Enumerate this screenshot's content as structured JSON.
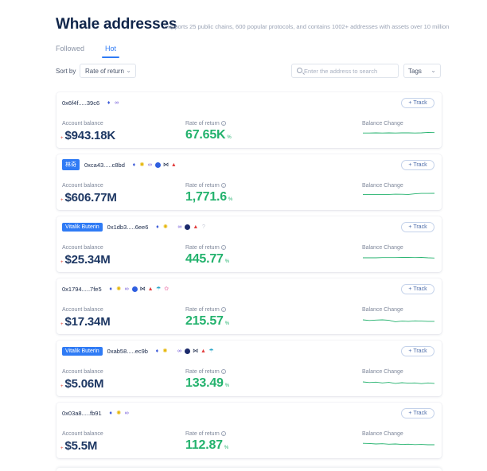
{
  "header": {
    "title": "Whale addresses",
    "subtitle": "Supports 25 public chains, 600 popular protocols, and contains 1002+ addresses with assets over 10 million"
  },
  "tabs": [
    {
      "label": "Followed",
      "active": false
    },
    {
      "label": "Hot",
      "active": true
    }
  ],
  "toolbar": {
    "sort_label": "Sort by",
    "sort_value": "Rate of return",
    "search_placeholder": "Enter the address to search",
    "tags_value": "Tags"
  },
  "labels": {
    "account_balance": "Account balance",
    "rate_of_return": "Rate of return",
    "balance_change": "Balance Change",
    "track": "+ Track",
    "percent": "%"
  },
  "colors": {
    "accent": "#2f7bf5",
    "positive": "#23b26d",
    "balance_text": "#1d3763"
  },
  "whales": [
    {
      "tag": "",
      "address": "0x6f4f.....39c6",
      "icons": [
        "eth-icon",
        "link-icon"
      ],
      "protocol_icons": [],
      "balance_prefix": "+",
      "balance": "$943.18K",
      "rate": "67.65K",
      "spark": [
        0.55,
        0.55,
        0.56,
        0.55,
        0.56,
        0.55,
        0.56,
        0.56,
        0.55,
        0.56,
        0.6,
        0.58
      ]
    },
    {
      "tag": "林奇",
      "address": "0xca43.....c8bd",
      "icons": [
        "eth-icon",
        "sun-icon",
        "link-icon",
        "blue-coin-icon",
        "bowtie-icon",
        "red-triangle-icon"
      ],
      "protocol_icons": [],
      "balance_prefix": "+",
      "balance": "$606.77M",
      "rate": "1,771.6",
      "spark": [
        0.6,
        0.6,
        0.6,
        0.6,
        0.6,
        0.62,
        0.61,
        0.6,
        0.65,
        0.68,
        0.68,
        0.69
      ]
    },
    {
      "tag": "Vitalik Buterin",
      "address": "0x1db3.....6ee6",
      "icons": [
        "eth-icon",
        "sun-icon"
      ],
      "protocol_icons": [
        "link-icon",
        "navy-coin-icon",
        "red-triangle-icon",
        "grey-question-icon"
      ],
      "balance_prefix": "+",
      "balance": "$25.34M",
      "rate": "445.77",
      "spark": [
        0.5,
        0.5,
        0.5,
        0.52,
        0.52,
        0.52,
        0.53,
        0.53,
        0.52,
        0.53,
        0.5,
        0.48
      ]
    },
    {
      "tag": "",
      "address": "0x1794.....7fe5",
      "icons": [
        "eth-icon",
        "sun-icon",
        "link-icon",
        "blue-coin-icon",
        "bowtie-icon",
        "red-triangle-icon",
        "umbrella-icon",
        "flower-icon"
      ],
      "protocol_icons": [],
      "balance_prefix": "+",
      "balance": "$17.34M",
      "rate": "215.57",
      "spark": [
        0.5,
        0.45,
        0.48,
        0.5,
        0.46,
        0.35,
        0.4,
        0.38,
        0.42,
        0.4,
        0.38,
        0.38
      ]
    },
    {
      "tag": "Vitalik Buterin",
      "address": "0xab58.....ec9b",
      "icons": [
        "eth-icon",
        "sun-icon"
      ],
      "protocol_icons": [
        "link-icon",
        "navy-coin-icon",
        "bowtie-icon",
        "red-triangle-icon",
        "umbrella-icon"
      ],
      "balance_prefix": "+",
      "balance": "$5.06M",
      "rate": "133.49",
      "spark": [
        0.5,
        0.45,
        0.48,
        0.42,
        0.46,
        0.38,
        0.44,
        0.4,
        0.42,
        0.36,
        0.42,
        0.38
      ]
    },
    {
      "tag": "",
      "address": "0x03a8.....fb91",
      "icons": [
        "eth-icon",
        "sun-icon",
        "link-icon"
      ],
      "protocol_icons": [],
      "balance_prefix": "+",
      "balance": "$5.5M",
      "rate": "112.87",
      "spark": [
        0.55,
        0.54,
        0.5,
        0.52,
        0.48,
        0.5,
        0.46,
        0.48,
        0.45,
        0.46,
        0.44,
        0.44
      ]
    }
  ]
}
